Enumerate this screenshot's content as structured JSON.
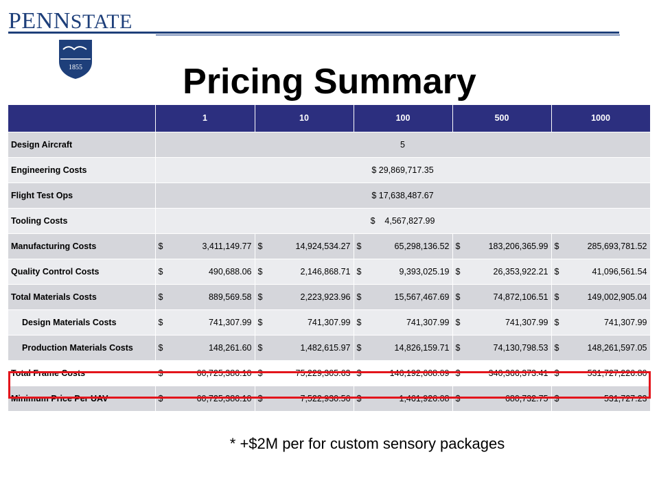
{
  "header": {
    "logo_text_prefix": "PENN",
    "logo_text_suffix": "STATE",
    "logo_year": "1855",
    "title": "Pricing Summary"
  },
  "table": {
    "columns": [
      "",
      "1",
      "10",
      "100",
      "500",
      "1000"
    ],
    "merged_rows": [
      {
        "label": "Design Aircraft",
        "value": "5"
      },
      {
        "label": "Engineering Costs",
        "value": "$ 29,869,717.35"
      },
      {
        "label": "Flight Test Ops",
        "value": "$ 17,638,487.67"
      },
      {
        "label": "Tooling Costs",
        "value": "$    4,567,827.99"
      }
    ],
    "rows": [
      {
        "label": "Manufacturing Costs",
        "indent": false,
        "values": [
          "3,411,149.77",
          "14,924,534.27",
          "65,298,136.52",
          "183,206,365.99",
          "285,693,781.52"
        ]
      },
      {
        "label": "Quality Control Costs",
        "indent": false,
        "values": [
          "490,688.06",
          "2,146,868.71",
          "9,393,025.19",
          "26,353,922.21",
          "41,096,561.54"
        ]
      },
      {
        "label": "Total Materials Costs",
        "indent": false,
        "values": [
          "889,569.58",
          "2,223,923.96",
          "15,567,467.69",
          "74,872,106.51",
          "149,002,905.04"
        ]
      },
      {
        "label": "Design Materials Costs",
        "indent": true,
        "values": [
          "741,307.99",
          "741,307.99",
          "741,307.99",
          "741,307.99",
          "741,307.99"
        ]
      },
      {
        "label": "Production Materials Costs",
        "indent": true,
        "values": [
          "148,261.60",
          "1,482,615.97",
          "14,826,159.71",
          "74,130,798.53",
          "148,261,597.05"
        ]
      },
      {
        "label": "Total Frame Costs",
        "indent": false,
        "highlight": true,
        "values": [
          "60,725,386.10",
          "75,229,305.63",
          "146,192,608.09",
          "340,366,373.41",
          "531,727,226.80"
        ]
      },
      {
        "label": "Minimum Price Per UAV",
        "indent": false,
        "values": [
          "60,725,386.10",
          "7,522,930.56",
          "1,461,926.08",
          "680,732.75",
          "531,727.23"
        ]
      }
    ],
    "currency_symbol": "$"
  },
  "footnote": "* +$2M per for custom sensory packages",
  "colors": {
    "header_bg": "#2c2f7f",
    "highlight_border": "#e3141b",
    "brand": "#1e3f7a"
  }
}
